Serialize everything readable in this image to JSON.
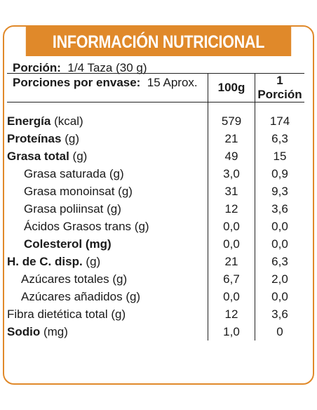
{
  "title": "INFORMACIÓN NUTRICIONAL",
  "portion": {
    "label": "Porción:",
    "value": "1/4 Taza (30 g)"
  },
  "servings": {
    "label": "Porciones por envase:",
    "value": "15 Aprox."
  },
  "columns": [
    "100g",
    "1 Porción"
  ],
  "rows": [
    {
      "name": "Energía",
      "unit": "(kcal)",
      "bold": true,
      "indent": 0,
      "v100": "579",
      "vp": "174"
    },
    {
      "name": "Proteínas",
      "unit": "(g)",
      "bold": true,
      "indent": 0,
      "v100": "21",
      "vp": "6,3"
    },
    {
      "name": "Grasa total",
      "unit": "(g)",
      "bold": true,
      "indent": 0,
      "v100": "49",
      "vp": "15"
    },
    {
      "name": "Grasa saturada (g)",
      "unit": "",
      "bold": false,
      "indent": 1,
      "v100": "3,0",
      "vp": "0,9"
    },
    {
      "name": "Grasa monoinsat (g)",
      "unit": "",
      "bold": false,
      "indent": 1,
      "v100": "31",
      "vp": "9,3"
    },
    {
      "name": "Grasa poliinsat (g)",
      "unit": "",
      "bold": false,
      "indent": 1,
      "v100": "12",
      "vp": "3,6"
    },
    {
      "name": "Ácidos Grasos trans (g)",
      "unit": "",
      "bold": false,
      "indent": 1,
      "v100": "0,0",
      "vp": "0,0"
    },
    {
      "name": "Colesterol (mg)",
      "unit": "",
      "bold": true,
      "indent": 1,
      "v100": "0,0",
      "vp": "0,0"
    },
    {
      "name": "H. de C. disp.",
      "unit": "(g)",
      "bold": true,
      "indent": 0,
      "v100": "21",
      "vp": "6,3"
    },
    {
      "name": "Azúcares totales (g)",
      "unit": "",
      "bold": false,
      "indent": 2,
      "v100": "6,7",
      "vp": "2,0"
    },
    {
      "name": "Azúcares añadidos (g)",
      "unit": "",
      "bold": false,
      "indent": 2,
      "v100": "0,0",
      "vp": "0,0"
    },
    {
      "name": "Fibra dietética total (g)",
      "unit": "",
      "bold": false,
      "indent": 0,
      "v100": "12",
      "vp": "3,6"
    },
    {
      "name": "Sodio",
      "unit": "(mg)",
      "bold": true,
      "indent": 0,
      "v100": "1,0",
      "vp": "0"
    }
  ]
}
